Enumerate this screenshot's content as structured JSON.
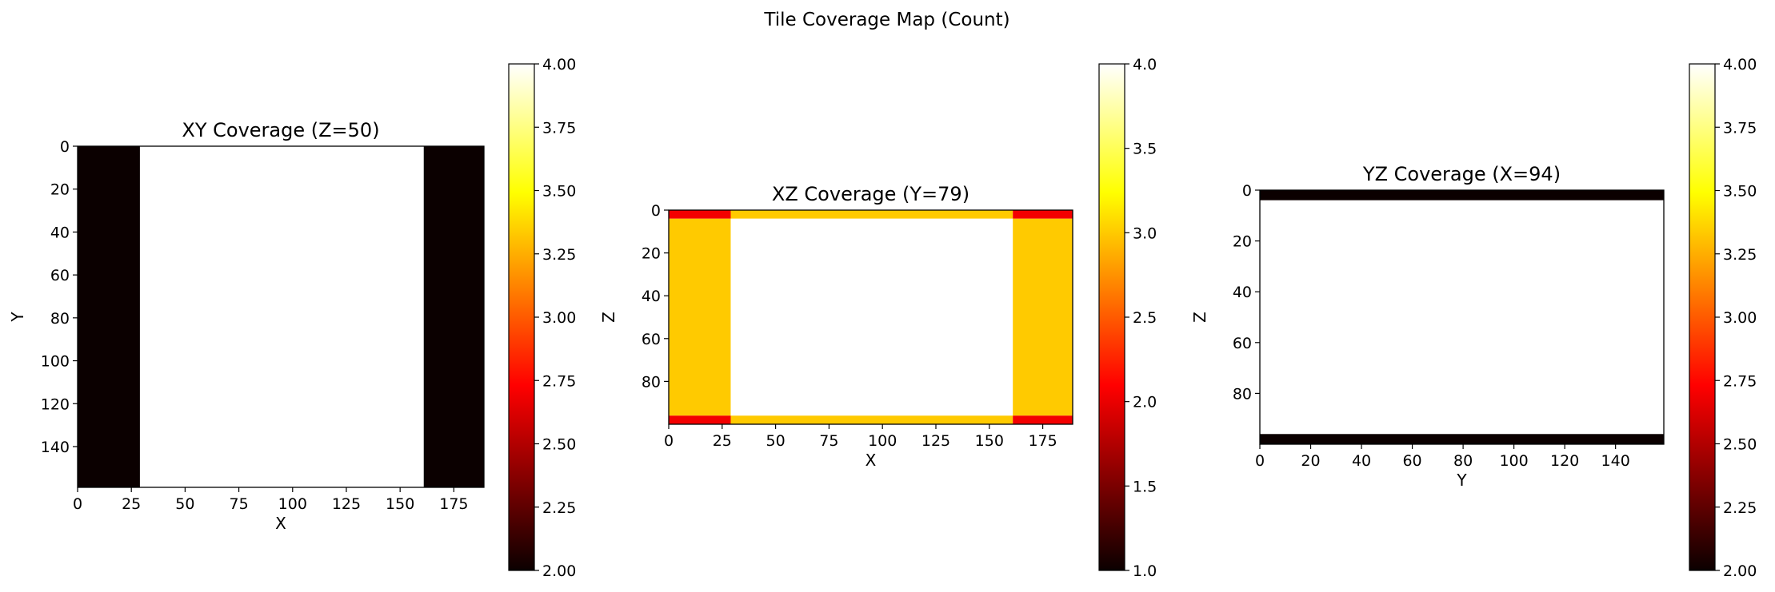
{
  "figure": {
    "suptitle": "Tile Coverage Map (Count)"
  },
  "colormap": "hot",
  "colors": {
    "count_2_on_1to4": "#0b0000",
    "count_3_on_1to4": "#ea0000",
    "count_4": "#ffffff",
    "count_2_on_2to4": "#0b0000"
  },
  "chart_data": [
    {
      "type": "heatmap",
      "title": "XY Coverage (Z=50)",
      "xlabel": "X",
      "ylabel": "Y",
      "xlim": [
        0,
        189
      ],
      "ylim": [
        159,
        0
      ],
      "xticks": [
        0,
        25,
        50,
        75,
        100,
        125,
        150,
        175
      ],
      "yticks": [
        0,
        20,
        40,
        60,
        80,
        100,
        120,
        140
      ],
      "regions": [
        {
          "x": [
            0,
            29
          ],
          "y": [
            0,
            159
          ],
          "value": 2
        },
        {
          "x": [
            29,
            161
          ],
          "y": [
            0,
            159
          ],
          "value": 4
        },
        {
          "x": [
            161,
            189
          ],
          "y": [
            0,
            159
          ],
          "value": 2
        }
      ],
      "colorbar": {
        "vmin": 2.0,
        "vmax": 4.0,
        "ticks": [
          "2.00",
          "2.25",
          "2.50",
          "2.75",
          "3.00",
          "3.25",
          "3.50",
          "3.75",
          "4.00"
        ]
      }
    },
    {
      "type": "heatmap",
      "title": "XZ Coverage (Y=79)",
      "xlabel": "X",
      "ylabel": "Z",
      "xlim": [
        0,
        189
      ],
      "ylim": [
        100,
        0
      ],
      "xticks": [
        0,
        25,
        50,
        75,
        100,
        125,
        150,
        175
      ],
      "yticks": [
        0,
        20,
        40,
        60,
        80
      ],
      "regions": [
        {
          "x": [
            0,
            29
          ],
          "y": [
            0,
            4
          ],
          "value": 2
        },
        {
          "x": [
            29,
            161
          ],
          "y": [
            0,
            4
          ],
          "value": 3
        },
        {
          "x": [
            161,
            189
          ],
          "y": [
            0,
            4
          ],
          "value": 2
        },
        {
          "x": [
            0,
            29
          ],
          "y": [
            4,
            96
          ],
          "value": 3
        },
        {
          "x": [
            29,
            161
          ],
          "y": [
            4,
            96
          ],
          "value": 4
        },
        {
          "x": [
            161,
            189
          ],
          "y": [
            4,
            96
          ],
          "value": 3
        },
        {
          "x": [
            0,
            29
          ],
          "y": [
            96,
            100
          ],
          "value": 2
        },
        {
          "x": [
            29,
            161
          ],
          "y": [
            96,
            100
          ],
          "value": 3
        },
        {
          "x": [
            161,
            189
          ],
          "y": [
            96,
            100
          ],
          "value": 2
        }
      ],
      "colorbar": {
        "vmin": 1.0,
        "vmax": 4.0,
        "ticks": [
          "1.0",
          "1.5",
          "2.0",
          "2.5",
          "3.0",
          "3.5",
          "4.0"
        ]
      }
    },
    {
      "type": "heatmap",
      "title": "YZ Coverage (X=94)",
      "xlabel": "Y",
      "ylabel": "Z",
      "xlim": [
        0,
        159
      ],
      "ylim": [
        100,
        0
      ],
      "xticks": [
        0,
        20,
        40,
        60,
        80,
        100,
        120,
        140
      ],
      "yticks": [
        0,
        20,
        40,
        60,
        80
      ],
      "regions": [
        {
          "x": [
            0,
            159
          ],
          "y": [
            0,
            4
          ],
          "value": 2
        },
        {
          "x": [
            0,
            159
          ],
          "y": [
            4,
            96
          ],
          "value": 4
        },
        {
          "x": [
            0,
            159
          ],
          "y": [
            96,
            100
          ],
          "value": 2
        }
      ],
      "colorbar": {
        "vmin": 2.0,
        "vmax": 4.0,
        "ticks": [
          "2.00",
          "2.25",
          "2.50",
          "2.75",
          "3.00",
          "3.25",
          "3.50",
          "3.75",
          "4.00"
        ]
      }
    }
  ]
}
